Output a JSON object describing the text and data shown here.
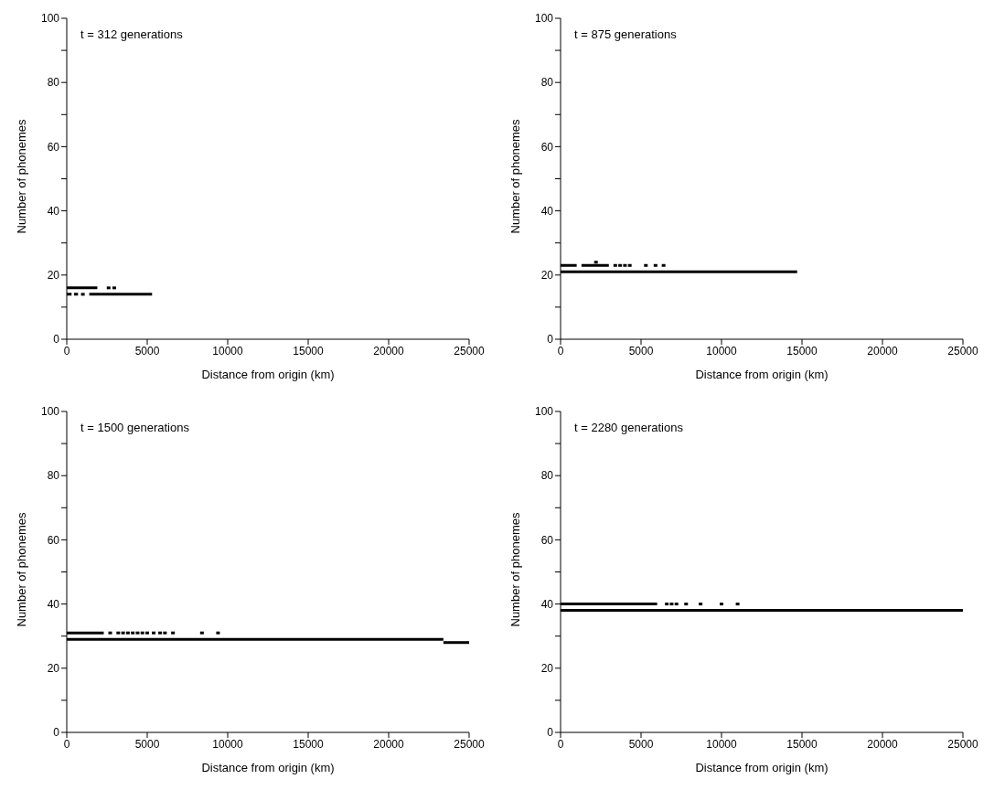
{
  "chart_data": [
    {
      "type": "scatter",
      "annotations": [
        "t = 312 generations"
      ],
      "xlabel": "Distance from origin (km)",
      "ylabel": "Number of phonemes",
      "xlim": [
        0,
        25000
      ],
      "xticks": [
        0,
        5000,
        10000,
        15000,
        20000,
        25000
      ],
      "ylim": [
        0,
        100
      ],
      "yticks": [
        0,
        {
          "value": 10,
          "label": null
        },
        20,
        {
          "value": 30,
          "label": null
        },
        40,
        {
          "value": 50,
          "label": null
        },
        60,
        {
          "value": 70,
          "label": null
        },
        80,
        {
          "value": 90,
          "label": null
        },
        100
      ],
      "marker": "square",
      "line_style": "solid",
      "series": [
        {
          "type": "line",
          "marker": "none",
          "color": "#000000",
          "x": [
            0,
            1900
          ],
          "values": [
            16,
            16
          ]
        },
        {
          "color": "#000000",
          "x": [
            2600,
            2950
          ],
          "values": [
            16,
            16
          ]
        },
        {
          "type": "line",
          "marker": "none",
          "color": "#000000",
          "x": [
            0,
            300,
            350,
            450,
            700,
            750,
            1400,
            5300
          ],
          "values": [
            14,
            14,
            null,
            14,
            14,
            null,
            14,
            14
          ]
        },
        {
          "color": "#000000",
          "x": [
            1000
          ],
          "values": [
            14
          ]
        }
      ]
    },
    {
      "type": "scatter",
      "annotations": [
        "t = 875 generations"
      ],
      "xlabel": "Distance from origin (km)",
      "ylabel": "Number of phonemes",
      "xlim": [
        0,
        25000
      ],
      "xticks": [
        0,
        5000,
        10000,
        15000,
        20000,
        25000
      ],
      "ylim": [
        0,
        100
      ],
      "yticks": [
        0,
        {
          "value": 10,
          "label": null
        },
        20,
        {
          "value": 30,
          "label": null
        },
        40,
        {
          "value": 50,
          "label": null
        },
        60,
        {
          "value": 70,
          "label": null
        },
        80,
        {
          "value": 90,
          "label": null
        },
        100
      ],
      "marker": "square",
      "line_style": "solid",
      "series": [
        {
          "type": "line",
          "marker": "none",
          "color": "#000000",
          "x": [
            0,
            1000,
            1100,
            1300,
            3000
          ],
          "values": [
            23,
            23,
            null,
            23,
            23
          ]
        },
        {
          "color": "#000000",
          "x": [
            2200,
            3400,
            3700,
            4000,
            4300,
            5300,
            5900,
            6400
          ],
          "values": [
            24,
            23,
            23,
            23,
            23,
            23,
            23,
            23
          ]
        },
        {
          "type": "line",
          "marker": "none",
          "color": "#000000",
          "x": [
            0,
            14700
          ],
          "values": [
            21,
            21
          ]
        }
      ]
    },
    {
      "type": "scatter",
      "annotations": [
        "t = 1500 generations"
      ],
      "xlabel": "Distance from origin (km)",
      "ylabel": "Number of phonemes",
      "xlim": [
        0,
        25000
      ],
      "xticks": [
        0,
        5000,
        10000,
        15000,
        20000,
        25000
      ],
      "ylim": [
        0,
        100
      ],
      "yticks": [
        0,
        {
          "value": 10,
          "label": null
        },
        20,
        {
          "value": 30,
          "label": null
        },
        40,
        {
          "value": 50,
          "label": null
        },
        60,
        {
          "value": 70,
          "label": null
        },
        80,
        {
          "value": 90,
          "label": null
        },
        100
      ],
      "marker": "square",
      "line_style": "solid",
      "series": [
        {
          "type": "line",
          "marker": "none",
          "color": "#000000",
          "x": [
            0,
            2300
          ],
          "values": [
            31,
            31
          ]
        },
        {
          "color": "#000000",
          "x": [
            2700,
            3200,
            3500,
            3800,
            4100,
            4400,
            4700,
            5000,
            5400,
            5800,
            6100,
            6600,
            8400,
            9400
          ],
          "values": [
            31,
            31,
            31,
            31,
            31,
            31,
            31,
            31,
            31,
            31,
            31,
            31,
            31,
            31
          ]
        },
        {
          "type": "line",
          "marker": "none",
          "color": "#000000",
          "x": [
            0,
            23400
          ],
          "values": [
            29,
            29
          ]
        },
        {
          "type": "line",
          "marker": "none",
          "color": "#000000",
          "x": [
            23400,
            25000
          ],
          "values": [
            28,
            28
          ]
        }
      ]
    },
    {
      "type": "scatter",
      "annotations": [
        "t = 2280 generations"
      ],
      "xlabel": "Distance from origin (km)",
      "ylabel": "Number of phonemes",
      "xlim": [
        0,
        25000
      ],
      "xticks": [
        0,
        5000,
        10000,
        15000,
        20000,
        25000
      ],
      "ylim": [
        0,
        100
      ],
      "yticks": [
        0,
        {
          "value": 10,
          "label": null
        },
        20,
        {
          "value": 30,
          "label": null
        },
        40,
        {
          "value": 50,
          "label": null
        },
        60,
        {
          "value": 70,
          "label": null
        },
        80,
        {
          "value": 90,
          "label": null
        },
        100
      ],
      "marker": "square",
      "line_style": "solid",
      "series": [
        {
          "type": "line",
          "marker": "none",
          "color": "#000000",
          "x": [
            0,
            6000
          ],
          "values": [
            40,
            40
          ]
        },
        {
          "color": "#000000",
          "x": [
            6600,
            6900,
            7200,
            7800,
            8700,
            10000,
            11000
          ],
          "values": [
            40,
            40,
            40,
            40,
            40,
            40,
            40
          ]
        },
        {
          "type": "line",
          "marker": "none",
          "color": "#000000",
          "x": [
            0,
            25000
          ],
          "values": [
            38,
            38
          ]
        }
      ]
    }
  ]
}
